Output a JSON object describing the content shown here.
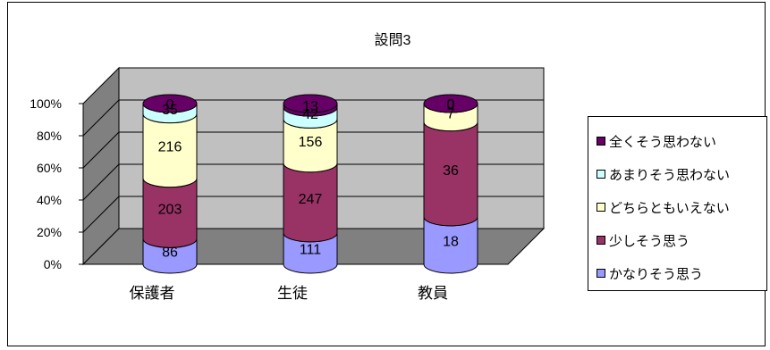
{
  "chart_data": {
    "type": "bar",
    "stacked": "percent",
    "style": "3d-cylinder",
    "title": "設問3",
    "categories": [
      "保護者",
      "生徒",
      "教員"
    ],
    "series": [
      {
        "name": "かなりそう思う",
        "color": "#9999ff",
        "values": [
          86,
          111,
          18
        ]
      },
      {
        "name": "少しそう思う",
        "color": "#993366",
        "values": [
          203,
          247,
          36
        ]
      },
      {
        "name": "どちらともいえない",
        "color": "#ffffcc",
        "values": [
          216,
          156,
          7
        ]
      },
      {
        "name": "あまりそう思わない",
        "color": "#ccffff",
        "values": [
          35,
          42,
          0
        ]
      },
      {
        "name": "全くそう思わない",
        "color": "#660066",
        "values": [
          0,
          13,
          0
        ]
      }
    ],
    "yticks": [
      "0%",
      "20%",
      "40%",
      "60%",
      "80%",
      "100%"
    ],
    "ylim": [
      0,
      100
    ],
    "grid": true,
    "legend_position": "right",
    "wall_color": "#c0c0c0"
  }
}
